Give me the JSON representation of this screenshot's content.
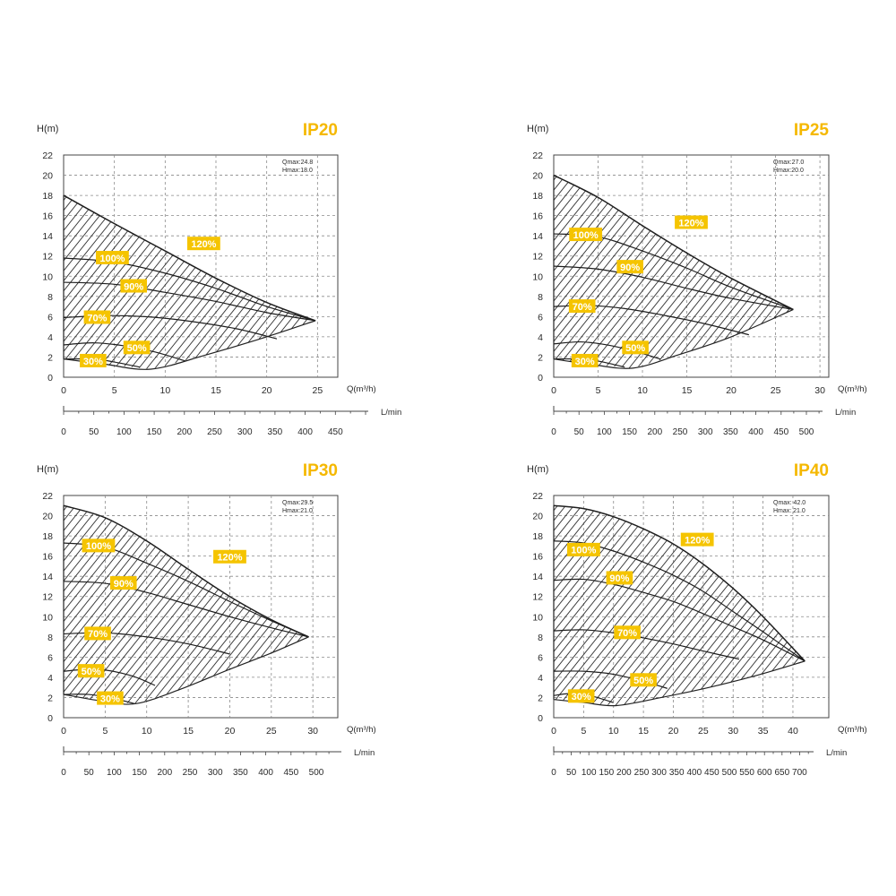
{
  "colors": {
    "accent": "#F5C400",
    "title": "#F5B800",
    "ink": "#2a2a2a",
    "grid": "#8a8a8a"
  },
  "chart_data": [
    {
      "type": "line",
      "title": "IP20",
      "ylabel": "H(m)",
      "xlabel": "Q(m³/h)",
      "x2label": "L/min",
      "ylim": [
        0,
        22
      ],
      "xlim": [
        0,
        27
      ],
      "yticks": [
        0,
        2,
        4,
        6,
        8,
        10,
        12,
        14,
        16,
        18,
        20,
        22
      ],
      "xticks": [
        0,
        5,
        10,
        15,
        20,
        25
      ],
      "x2ticks": [
        0,
        50,
        100,
        150,
        200,
        250,
        300,
        350,
        400,
        450
      ],
      "info": [
        "Qmax:24.8",
        "Hmax:18.0"
      ],
      "apex": [
        24.8,
        5.6
      ],
      "series": [
        {
          "name": "120%",
          "label_at": [
            13.8,
            13.2
          ],
          "points": [
            [
              0,
              18.0
            ],
            [
              5,
              15.2
            ],
            [
              10,
              12.5
            ],
            [
              15,
              9.8
            ],
            [
              20,
              7.4
            ],
            [
              24.8,
              5.6
            ]
          ]
        },
        {
          "name": "100%",
          "label_at": [
            4.8,
            11.8
          ],
          "points": [
            [
              0,
              11.8
            ],
            [
              5,
              11.4
            ],
            [
              10,
              10.3
            ],
            [
              15,
              8.8
            ],
            [
              20,
              7.0
            ],
            [
              24.8,
              5.6
            ]
          ]
        },
        {
          "name": "90%",
          "label_at": [
            6.9,
            9.0
          ],
          "points": [
            [
              0,
              9.4
            ],
            [
              5,
              9.2
            ],
            [
              10,
              8.4
            ],
            [
              15,
              7.5
            ],
            [
              20,
              6.4
            ],
            [
              24.8,
              5.6
            ]
          ]
        },
        {
          "name": "70%",
          "label_at": [
            3.3,
            5.9
          ],
          "points": [
            [
              0,
              5.9
            ],
            [
              4,
              6.1
            ],
            [
              8,
              6.0
            ],
            [
              12,
              5.6
            ],
            [
              17,
              4.8
            ],
            [
              21,
              3.8
            ]
          ]
        },
        {
          "name": "50%",
          "label_at": [
            7.2,
            2.9
          ],
          "points": [
            [
              0,
              3.2
            ],
            [
              3,
              3.4
            ],
            [
              6,
              3.1
            ],
            [
              9,
              2.5
            ],
            [
              12,
              1.6
            ]
          ]
        },
        {
          "name": "30%",
          "label_at": [
            2.9,
            1.6
          ],
          "points": [
            [
              0,
              1.8
            ],
            [
              3,
              1.8
            ],
            [
              5,
              1.5
            ],
            [
              7.5,
              1.0
            ]
          ]
        }
      ],
      "lower": [
        [
          0,
          1.8
        ],
        [
          4,
          1.3
        ],
        [
          8.6,
          0.8
        ],
        [
          14,
          2.2
        ],
        [
          20,
          4.0
        ],
        [
          24.8,
          5.6
        ]
      ]
    },
    {
      "type": "line",
      "title": "IP25",
      "ylabel": "H(m)",
      "xlabel": "Q(m³/h)",
      "x2label": "L/min",
      "ylim": [
        0,
        22
      ],
      "xlim": [
        0,
        31
      ],
      "yticks": [
        0,
        2,
        4,
        6,
        8,
        10,
        12,
        14,
        16,
        18,
        20,
        22
      ],
      "xticks": [
        0,
        5,
        10,
        15,
        20,
        25,
        30
      ],
      "x2ticks": [
        0,
        50,
        100,
        150,
        200,
        250,
        300,
        350,
        400,
        450,
        500
      ],
      "info": [
        "Qmax:27.0",
        "Hmax:20.0"
      ],
      "apex": [
        27.0,
        6.7
      ],
      "series": [
        {
          "name": "120%",
          "label_at": [
            15.5,
            15.3
          ],
          "points": [
            [
              0,
              20.0
            ],
            [
              5,
              17.8
            ],
            [
              10,
              15.0
            ],
            [
              15,
              12.3
            ],
            [
              20,
              9.8
            ],
            [
              27.0,
              6.7
            ]
          ]
        },
        {
          "name": "100%",
          "label_at": [
            3.6,
            14.1
          ],
          "points": [
            [
              0,
              14.2
            ],
            [
              5,
              13.9
            ],
            [
              10,
              12.5
            ],
            [
              15,
              10.8
            ],
            [
              20,
              8.9
            ],
            [
              27.0,
              6.7
            ]
          ]
        },
        {
          "name": "90%",
          "label_at": [
            8.6,
            10.9
          ],
          "points": [
            [
              0,
              11.0
            ],
            [
              5,
              10.7
            ],
            [
              10,
              9.9
            ],
            [
              15,
              8.8
            ],
            [
              20,
              7.8
            ],
            [
              27.0,
              6.7
            ]
          ]
        },
        {
          "name": "70%",
          "label_at": [
            3.2,
            7.0
          ],
          "points": [
            [
              0,
              7.0
            ],
            [
              4,
              7.1
            ],
            [
              8,
              6.8
            ],
            [
              12,
              6.2
            ],
            [
              17,
              5.3
            ],
            [
              22,
              4.2
            ]
          ]
        },
        {
          "name": "50%",
          "label_at": [
            9.2,
            2.9
          ],
          "points": [
            [
              0,
              3.3
            ],
            [
              3,
              3.5
            ],
            [
              6,
              3.2
            ],
            [
              9,
              2.6
            ],
            [
              12,
              1.8
            ]
          ]
        },
        {
          "name": "30%",
          "label_at": [
            3.5,
            1.6
          ],
          "points": [
            [
              0,
              1.8
            ],
            [
              3,
              1.8
            ],
            [
              5,
              1.6
            ],
            [
              8,
              1.0
            ]
          ]
        }
      ],
      "lower": [
        [
          0,
          1.8
        ],
        [
          4,
          1.3
        ],
        [
          8.9,
          0.9
        ],
        [
          14,
          2.2
        ],
        [
          20,
          4.0
        ],
        [
          27.0,
          6.7
        ]
      ]
    },
    {
      "type": "line",
      "title": "IP30",
      "ylabel": "H(m)",
      "xlabel": "Q(m³/h)",
      "x2label": "L/min",
      "ylim": [
        0,
        22
      ],
      "xlim": [
        0,
        33
      ],
      "yticks": [
        0,
        2,
        4,
        6,
        8,
        10,
        12,
        14,
        16,
        18,
        20,
        22
      ],
      "xticks": [
        0,
        5,
        10,
        15,
        20,
        25,
        30
      ],
      "x2ticks": [
        0,
        50,
        100,
        150,
        200,
        250,
        300,
        350,
        400,
        450,
        500
      ],
      "info": [
        "Qmax:29.5",
        "Hmax:21.0"
      ],
      "apex": [
        29.5,
        8.0
      ],
      "series": [
        {
          "name": "120%",
          "label_at": [
            20.0,
            15.9
          ],
          "points": [
            [
              0,
              21.0
            ],
            [
              5,
              19.8
            ],
            [
              10,
              17.5
            ],
            [
              15,
              14.7
            ],
            [
              20,
              12.0
            ],
            [
              25,
              9.7
            ],
            [
              29.5,
              8.0
            ]
          ]
        },
        {
          "name": "100%",
          "label_at": [
            4.2,
            17.0
          ],
          "points": [
            [
              0,
              17.3
            ],
            [
              5,
              16.9
            ],
            [
              10,
              15.3
            ],
            [
              15,
              13.5
            ],
            [
              20,
              11.5
            ],
            [
              25,
              9.6
            ],
            [
              29.5,
              8.0
            ]
          ]
        },
        {
          "name": "90%",
          "label_at": [
            7.2,
            13.3
          ],
          "points": [
            [
              0,
              13.5
            ],
            [
              5,
              13.3
            ],
            [
              10,
              12.4
            ],
            [
              15,
              11.2
            ],
            [
              20,
              10.0
            ],
            [
              25,
              8.9
            ],
            [
              29.5,
              8.0
            ]
          ]
        },
        {
          "name": "70%",
          "label_at": [
            4.1,
            8.3
          ],
          "points": [
            [
              0,
              8.3
            ],
            [
              5,
              8.4
            ],
            [
              10,
              8.0
            ],
            [
              15,
              7.3
            ],
            [
              20,
              6.3
            ]
          ]
        },
        {
          "name": "50%",
          "label_at": [
            3.3,
            4.6
          ],
          "points": [
            [
              0,
              4.6
            ],
            [
              4,
              4.8
            ],
            [
              8,
              4.2
            ],
            [
              11,
              3.2
            ]
          ]
        },
        {
          "name": "30%",
          "label_at": [
            5.6,
            1.9
          ],
          "points": [
            [
              0,
              2.3
            ],
            [
              3,
              2.3
            ],
            [
              6,
              1.9
            ],
            [
              8.5,
              1.4
            ]
          ]
        }
      ],
      "lower": [
        [
          0,
          2.3
        ],
        [
          5,
          1.6
        ],
        [
          8.8,
          1.4
        ],
        [
          14,
          2.8
        ],
        [
          20,
          4.8
        ],
        [
          25,
          6.4
        ],
        [
          29.5,
          8.0
        ]
      ]
    },
    {
      "type": "line",
      "title": "IP40",
      "ylabel": "H(m)",
      "xlabel": "Q(m³/h)",
      "x2label": "L/min",
      "ylim": [
        0,
        22
      ],
      "xlim": [
        0,
        46
      ],
      "yticks": [
        0,
        2,
        4,
        6,
        8,
        10,
        12,
        14,
        16,
        18,
        20,
        22
      ],
      "xticks": [
        0,
        5,
        10,
        15,
        20,
        25,
        30,
        35,
        40
      ],
      "x2ticks": [
        0,
        50,
        100,
        150,
        200,
        250,
        300,
        350,
        400,
        450,
        500,
        550,
        600,
        650,
        700
      ],
      "info": [
        "Qmax: 42.0",
        "Hmax: 21.0"
      ],
      "apex": [
        42.0,
        5.6
      ],
      "series": [
        {
          "name": "120%",
          "label_at": [
            24.0,
            17.6
          ],
          "points": [
            [
              0,
              21.0
            ],
            [
              5,
              20.7
            ],
            [
              10,
              19.9
            ],
            [
              15,
              18.7
            ],
            [
              20,
              17.2
            ],
            [
              25,
              15.2
            ],
            [
              30,
              12.8
            ],
            [
              35,
              10.0
            ],
            [
              42.0,
              5.6
            ]
          ]
        },
        {
          "name": "100%",
          "label_at": [
            5.0,
            16.6
          ],
          "points": [
            [
              0,
              17.5
            ],
            [
              5,
              17.3
            ],
            [
              10,
              16.5
            ],
            [
              15,
              15.4
            ],
            [
              20,
              14.1
            ],
            [
              25,
              12.5
            ],
            [
              30,
              10.5
            ],
            [
              35,
              8.5
            ],
            [
              42.0,
              5.6
            ]
          ]
        },
        {
          "name": "90%",
          "label_at": [
            11.0,
            13.8
          ],
          "points": [
            [
              0,
              13.6
            ],
            [
              5,
              13.7
            ],
            [
              10,
              13.2
            ],
            [
              15,
              12.4
            ],
            [
              20,
              11.5
            ],
            [
              25,
              10.3
            ],
            [
              30,
              9.0
            ],
            [
              35,
              7.7
            ],
            [
              42.0,
              5.6
            ]
          ]
        },
        {
          "name": "70%",
          "label_at": [
            12.3,
            8.4
          ],
          "points": [
            [
              0,
              8.6
            ],
            [
              5,
              8.7
            ],
            [
              10,
              8.4
            ],
            [
              15,
              7.9
            ],
            [
              20,
              7.3
            ],
            [
              25,
              6.6
            ],
            [
              31,
              5.8
            ]
          ]
        },
        {
          "name": "50%",
          "label_at": [
            15.0,
            3.7
          ],
          "points": [
            [
              0,
              4.6
            ],
            [
              5,
              4.6
            ],
            [
              10,
              4.3
            ],
            [
              15,
              3.6
            ],
            [
              19,
              2.9
            ]
          ]
        },
        {
          "name": "30%",
          "label_at": [
            4.6,
            2.1
          ],
          "points": [
            [
              0,
              2.2
            ],
            [
              3,
              2.4
            ],
            [
              6,
              2.2
            ],
            [
              10,
              1.5
            ]
          ]
        }
      ],
      "lower": [
        [
          0,
          1.8
        ],
        [
          5,
          1.5
        ],
        [
          10.5,
          1.2
        ],
        [
          18,
          2.0
        ],
        [
          26,
          3.0
        ],
        [
          34,
          4.2
        ],
        [
          42.0,
          5.6
        ]
      ]
    }
  ]
}
